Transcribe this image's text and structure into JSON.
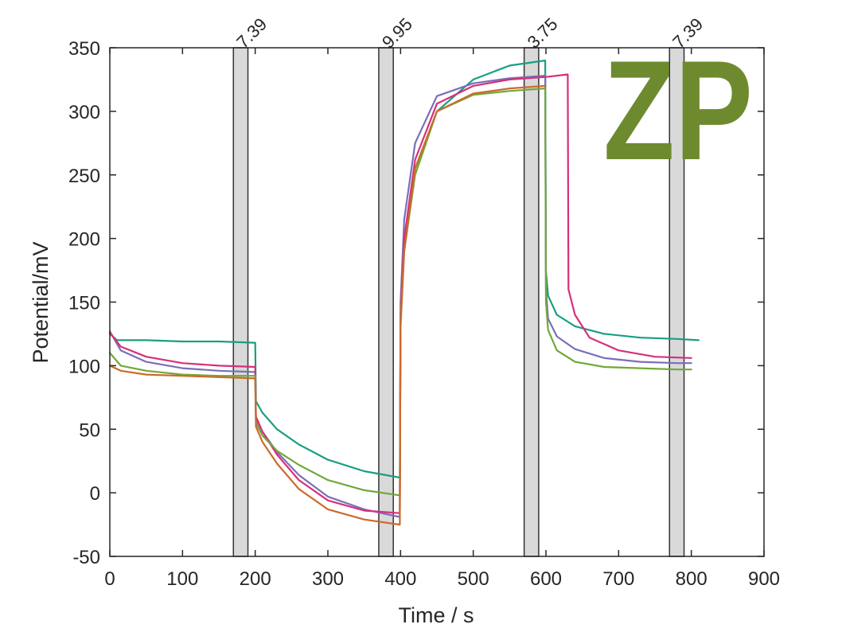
{
  "chart_data": {
    "type": "line",
    "title": "",
    "xlabel": "Time / s",
    "ylabel": "Potential/mV",
    "xlim": [
      0,
      900
    ],
    "ylim": [
      -50,
      350
    ],
    "xticks": [
      "0",
      "100",
      "200",
      "300",
      "400",
      "500",
      "600",
      "700",
      "800",
      "900"
    ],
    "yticks": [
      "-50",
      "0",
      "50",
      "100",
      "150",
      "200",
      "250",
      "300",
      "350"
    ],
    "grid": false,
    "legend": null,
    "bands": [
      {
        "x0": 170,
        "x1": 190,
        "label": "7.39"
      },
      {
        "x0": 370,
        "x1": 390,
        "label": "9.95"
      },
      {
        "x0": 570,
        "x1": 590,
        "label": "3.75"
      },
      {
        "x0": 770,
        "x1": 790,
        "label": "7.39"
      }
    ],
    "series": [
      {
        "name": "teal",
        "color": "#1a9e82",
        "x": [
          0,
          10,
          50,
          100,
          150,
          200,
          201,
          210,
          230,
          260,
          300,
          350,
          399,
          400,
          405,
          420,
          450,
          500,
          550,
          599,
          600,
          603,
          615,
          640,
          680,
          730,
          780,
          810
        ],
        "y": [
          125,
          120,
          120,
          119,
          119,
          118,
          72,
          63,
          50,
          38,
          26,
          17,
          12,
          135,
          195,
          255,
          300,
          325,
          336,
          340,
          174,
          155,
          140,
          131,
          125,
          122,
          121,
          120
        ]
      },
      {
        "name": "purple",
        "color": "#7a6fb8",
        "x": [
          0,
          15,
          50,
          100,
          150,
          200,
          201,
          210,
          230,
          260,
          300,
          350,
          399,
          400,
          405,
          420,
          450,
          500,
          550,
          599,
          600,
          603,
          615,
          640,
          680,
          730,
          780,
          800
        ],
        "y": [
          127,
          112,
          103,
          98,
          96,
          95,
          58,
          48,
          32,
          14,
          -3,
          -13,
          -19,
          150,
          215,
          275,
          312,
          322,
          326,
          328,
          160,
          137,
          123,
          113,
          106,
          103,
          102,
          102
        ]
      },
      {
        "name": "magenta",
        "color": "#d6307a",
        "x": [
          0,
          15,
          50,
          100,
          150,
          200,
          201,
          210,
          230,
          260,
          300,
          350,
          399,
          400,
          405,
          420,
          450,
          500,
          550,
          600,
          630,
          631,
          640,
          660,
          700,
          750,
          800
        ],
        "y": [
          126,
          115,
          107,
          102,
          100,
          99,
          60,
          48,
          30,
          10,
          -6,
          -14,
          -16,
          140,
          200,
          262,
          306,
          320,
          325,
          327,
          329,
          160,
          140,
          122,
          112,
          107,
          106
        ]
      },
      {
        "name": "olive-green",
        "color": "#72a83a",
        "x": [
          0,
          15,
          50,
          100,
          150,
          200,
          201,
          210,
          230,
          260,
          300,
          350,
          399,
          400,
          405,
          420,
          450,
          500,
          550,
          599,
          600,
          603,
          615,
          640,
          680,
          730,
          780,
          800
        ],
        "y": [
          110,
          100,
          96,
          93,
          92,
          92,
          55,
          45,
          33,
          22,
          10,
          2,
          -2,
          135,
          190,
          250,
          300,
          313,
          316,
          318,
          150,
          128,
          112,
          103,
          99,
          98,
          97,
          97
        ]
      },
      {
        "name": "orange",
        "color": "#cc6a2b",
        "x": [
          0,
          15,
          50,
          100,
          150,
          200,
          201,
          210,
          230,
          260,
          300,
          350,
          399,
          400,
          405,
          420,
          450,
          500,
          550,
          599
        ],
        "y": [
          100,
          96,
          93,
          92,
          91,
          90,
          52,
          40,
          23,
          3,
          -13,
          -21,
          -25,
          130,
          190,
          255,
          300,
          314,
          318,
          320
        ]
      }
    ]
  },
  "logo": {
    "text": "ZP",
    "color": "#6e8a2f"
  }
}
